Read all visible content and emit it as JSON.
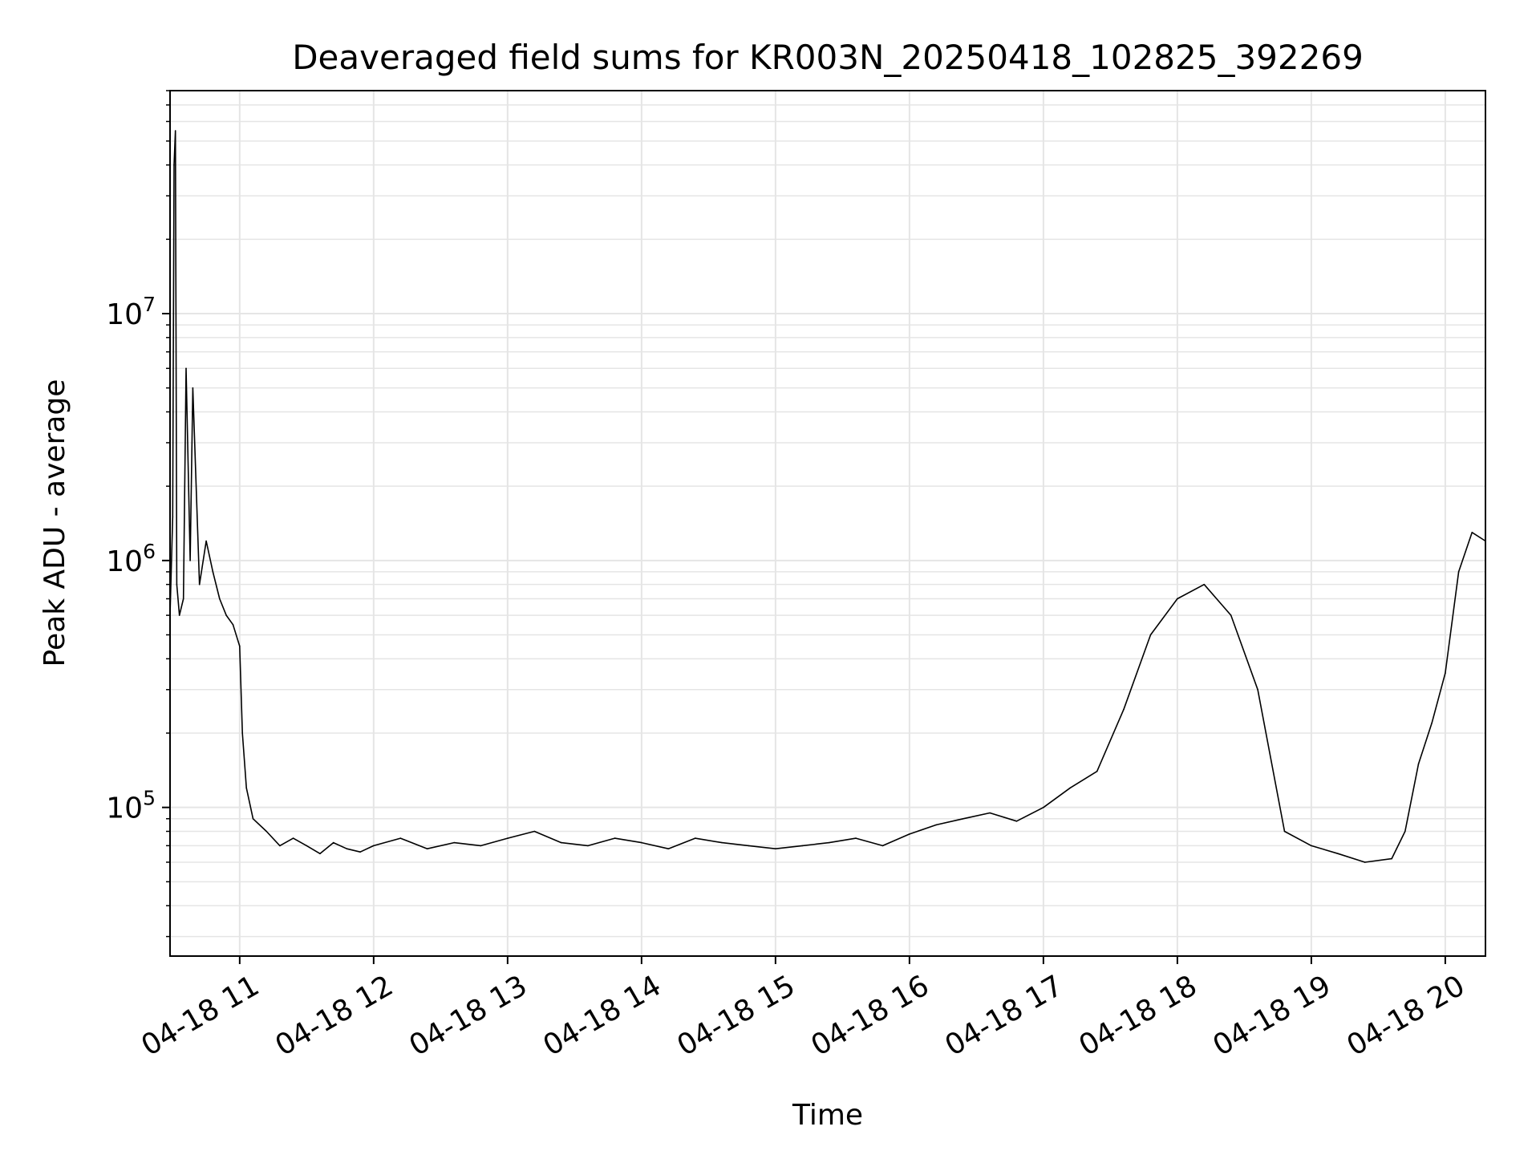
{
  "chart_data": {
    "type": "line",
    "title": "Deaveraged field sums for KR003N_20250418_102825_392269",
    "xlabel": "Time",
    "ylabel": "Peak ADU - average",
    "x_unit": "hours on 2025-04-18",
    "xlim": [
      10.48,
      20.3
    ],
    "ylim": [
      25000,
      80000000
    ],
    "yscale": "log",
    "grid": true,
    "grid_minor": true,
    "line_color": "#000000",
    "grid_color": "#e5e5e5",
    "x_ticks": [
      {
        "value": 11,
        "label": "04-18 11"
      },
      {
        "value": 12,
        "label": "04-18 12"
      },
      {
        "value": 13,
        "label": "04-18 13"
      },
      {
        "value": 14,
        "label": "04-18 14"
      },
      {
        "value": 15,
        "label": "04-18 15"
      },
      {
        "value": 16,
        "label": "04-18 16"
      },
      {
        "value": 17,
        "label": "04-18 17"
      },
      {
        "value": 18,
        "label": "04-18 18"
      },
      {
        "value": 19,
        "label": "04-18 19"
      },
      {
        "value": 20,
        "label": "04-18 20"
      }
    ],
    "y_ticks": [
      {
        "value": 100000,
        "base": "10",
        "exp": "5"
      },
      {
        "value": 1000000,
        "base": "10",
        "exp": "6"
      },
      {
        "value": 10000000,
        "base": "10",
        "exp": "7"
      }
    ],
    "series": [
      {
        "values_note": "approximate envelope; dense series with many spikes",
        "x": [
          10.48,
          10.5,
          10.51,
          10.52,
          10.53,
          10.55,
          10.58,
          10.6,
          10.63,
          10.65,
          10.7,
          10.75,
          10.8,
          10.85,
          10.9,
          10.95,
          11.0,
          11.02,
          11.05,
          11.1,
          11.2,
          11.3,
          11.4,
          11.5,
          11.6,
          11.7,
          11.8,
          11.9,
          12.0,
          12.2,
          12.4,
          12.6,
          12.8,
          13.0,
          13.2,
          13.4,
          13.6,
          13.8,
          14.0,
          14.2,
          14.4,
          14.6,
          14.8,
          15.0,
          15.2,
          15.4,
          15.6,
          15.8,
          16.0,
          16.2,
          16.4,
          16.6,
          16.8,
          17.0,
          17.2,
          17.4,
          17.6,
          17.8,
          18.0,
          18.2,
          18.4,
          18.6,
          18.8,
          19.0,
          19.2,
          19.4,
          19.6,
          19.7,
          19.8,
          19.9,
          20.0,
          20.1,
          20.2,
          20.3
        ],
        "y": [
          600000,
          1500000,
          40000000,
          55000000,
          800000,
          600000,
          700000,
          6000000,
          1000000,
          5000000,
          800000,
          1200000,
          900000,
          700000,
          600000,
          550000,
          450000,
          200000,
          120000,
          90000,
          80000,
          70000,
          75000,
          70000,
          65000,
          72000,
          68000,
          66000,
          70000,
          75000,
          68000,
          72000,
          70000,
          75000,
          80000,
          72000,
          70000,
          75000,
          72000,
          68000,
          75000,
          72000,
          70000,
          68000,
          70000,
          72000,
          75000,
          70000,
          78000,
          85000,
          90000,
          95000,
          88000,
          100000,
          120000,
          140000,
          250000,
          500000,
          700000,
          800000,
          600000,
          300000,
          80000,
          70000,
          65000,
          60000,
          62000,
          80000,
          150000,
          220000,
          350000,
          900000,
          1300000,
          1200000
        ]
      }
    ]
  }
}
